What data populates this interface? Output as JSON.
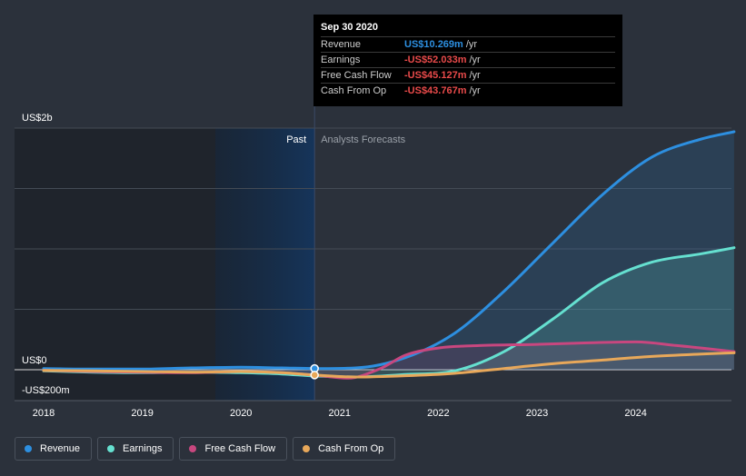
{
  "chart_data": {
    "type": "area",
    "y_axis": {
      "top_label": "US$2b",
      "zero_label": "US$0",
      "bottom_label": "-US$200m",
      "ylim": [
        -250,
        2000
      ]
    },
    "x_axis": {
      "tick_labels": [
        "2018",
        "2019",
        "2020",
        "2021",
        "2022",
        "2023",
        "2024"
      ]
    },
    "regions": {
      "past_label": "Past",
      "forecast_label": "Analysts Forecasts",
      "divider_date": "2020-09-30"
    },
    "series": [
      {
        "name": "Revenue",
        "color": "#2d8fe0",
        "fill": true,
        "x": [
          "2018-01-01",
          "2018-07-01",
          "2019-01-01",
          "2019-07-01",
          "2020-01-01",
          "2020-06-01",
          "2020-09-30",
          "2021-03-01",
          "2021-09-01",
          "2022-03-01",
          "2022-09-01",
          "2023-03-01",
          "2023-09-01",
          "2024-03-01",
          "2024-09-01",
          "2024-12-31"
        ],
        "values": [
          10,
          5,
          5,
          15,
          20,
          15,
          10,
          15,
          100,
          300,
          650,
          1050,
          1450,
          1760,
          1910,
          1970
        ]
      },
      {
        "name": "Earnings",
        "color": "#65e0d0",
        "fill": true,
        "x": [
          "2018-01-01",
          "2018-07-01",
          "2019-01-01",
          "2019-07-01",
          "2020-01-01",
          "2020-06-01",
          "2020-09-30",
          "2021-03-01",
          "2021-09-01",
          "2022-03-01",
          "2022-09-01",
          "2023-03-01",
          "2023-09-01",
          "2024-03-01",
          "2024-09-01",
          "2024-12-31"
        ],
        "values": [
          -10,
          -20,
          -25,
          -20,
          -25,
          -35,
          -52,
          -60,
          -40,
          -10,
          150,
          420,
          720,
          890,
          960,
          1010
        ]
      },
      {
        "name": "Free Cash Flow",
        "color": "#c8477f",
        "fill": true,
        "x": [
          "2018-01-01",
          "2018-07-01",
          "2019-01-01",
          "2019-07-01",
          "2020-01-01",
          "2020-06-01",
          "2020-09-30",
          "2021-02-01",
          "2021-06-01",
          "2021-09-01",
          "2022-01-01",
          "2022-06-01",
          "2023-01-01",
          "2023-06-01",
          "2024-01-01",
          "2024-06-01",
          "2024-12-31"
        ],
        "values": [
          -5,
          -15,
          -20,
          -25,
          -15,
          -25,
          -45,
          -70,
          10,
          120,
          180,
          200,
          210,
          220,
          230,
          200,
          150
        ]
      },
      {
        "name": "Cash From Op",
        "color": "#e8a85a",
        "fill": false,
        "x": [
          "2018-01-01",
          "2018-07-01",
          "2019-01-01",
          "2019-07-01",
          "2020-01-01",
          "2020-06-01",
          "2020-09-30",
          "2021-03-01",
          "2021-09-01",
          "2022-03-01",
          "2022-09-01",
          "2023-03-01",
          "2023-09-01",
          "2024-03-01",
          "2024-09-01",
          "2024-12-31"
        ],
        "values": [
          -5,
          -10,
          -15,
          -20,
          -15,
          -25,
          -44,
          -60,
          -50,
          -30,
          10,
          50,
          80,
          110,
          130,
          140
        ]
      }
    ]
  },
  "tooltip": {
    "date": "Sep 30 2020",
    "rows": [
      {
        "name": "Revenue",
        "value": "US$10.269m",
        "unit": "/yr",
        "color": "#2d8fe0"
      },
      {
        "name": "Earnings",
        "value": "-US$52.033m",
        "unit": "/yr",
        "color": "#e84a4a"
      },
      {
        "name": "Free Cash Flow",
        "value": "-US$45.127m",
        "unit": "/yr",
        "color": "#e84a4a"
      },
      {
        "name": "Cash From Op",
        "value": "-US$43.767m",
        "unit": "/yr",
        "color": "#e84a4a"
      }
    ]
  },
  "legend": [
    {
      "label": "Revenue",
      "color": "#2d8fe0"
    },
    {
      "label": "Earnings",
      "color": "#65e0d0"
    },
    {
      "label": "Free Cash Flow",
      "color": "#c8477f"
    },
    {
      "label": "Cash From Op",
      "color": "#e8a85a"
    }
  ]
}
